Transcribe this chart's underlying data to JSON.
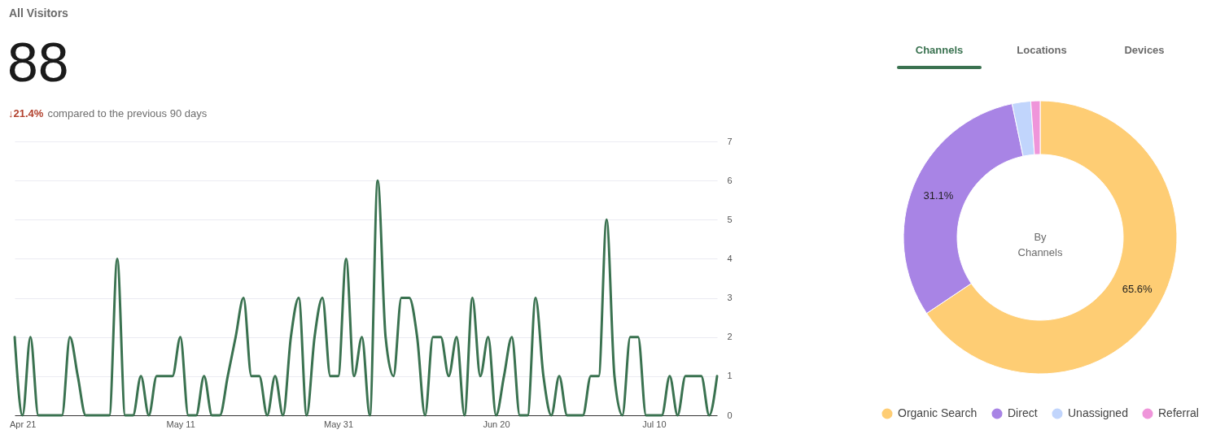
{
  "chart_data": [
    {
      "type": "line",
      "title": "All Visitors",
      "annotations": [
        "88",
        "↓21.4%",
        "compared to the previous 90 days"
      ],
      "x": [
        "--04-20",
        "--04-21",
        "--04-22",
        "--04-23",
        "--04-24",
        "--04-25",
        "--04-26",
        "--04-27",
        "--04-28",
        "--04-29",
        "--04-30",
        "--05-01",
        "--05-02",
        "--05-03",
        "--05-04",
        "--05-05",
        "--05-06",
        "--05-07",
        "--05-08",
        "--05-09",
        "--05-10",
        "--05-11",
        "--05-12",
        "--05-13",
        "--05-14",
        "--05-15",
        "--05-16",
        "--05-17",
        "--05-18",
        "--05-19",
        "--05-20",
        "--05-21",
        "--05-22",
        "--05-23",
        "--05-24",
        "--05-25",
        "--05-26",
        "--05-27",
        "--05-28",
        "--05-29",
        "--05-30",
        "--05-31",
        "--06-01",
        "--06-02",
        "--06-03",
        "--06-04",
        "--06-05",
        "--06-06",
        "--06-07",
        "--06-08",
        "--06-09",
        "--06-10",
        "--06-11",
        "--06-12",
        "--06-13",
        "--06-14",
        "--06-15",
        "--06-16",
        "--06-17",
        "--06-18",
        "--06-19",
        "--06-20",
        "--06-21",
        "--06-22",
        "--06-23",
        "--06-24",
        "--06-25",
        "--06-26",
        "--06-27",
        "--06-28",
        "--06-29",
        "--06-30",
        "--07-01",
        "--07-02",
        "--07-03",
        "--07-04",
        "--07-05",
        "--07-06",
        "--07-07",
        "--07-08",
        "--07-09",
        "--07-10",
        "--07-11",
        "--07-12",
        "--07-13",
        "--07-14",
        "--07-15",
        "--07-16",
        "--07-17",
        "--07-18"
      ],
      "series": [
        {
          "color": "#3a7250",
          "values": [
            2,
            0,
            2,
            0,
            0,
            0,
            0,
            2,
            1,
            0,
            0,
            0,
            0,
            4,
            0,
            0,
            1,
            0,
            1,
            1,
            1,
            2,
            0,
            0,
            1,
            0,
            0,
            1,
            2,
            3,
            1,
            1,
            0,
            1,
            0,
            2,
            3,
            0,
            2,
            3,
            1,
            1,
            4,
            1,
            2,
            0,
            6,
            2,
            1,
            3,
            3,
            2,
            0,
            2,
            2,
            1,
            2,
            0,
            3,
            1,
            2,
            0,
            1,
            2,
            0,
            0,
            3,
            1,
            0,
            1,
            0,
            0,
            0,
            1,
            1,
            5,
            1,
            0,
            2,
            2,
            0,
            0,
            0,
            1,
            0,
            1,
            1,
            1,
            0,
            1
          ]
        }
      ],
      "xlim": [
        "--04-20",
        "--07-18"
      ],
      "xticks": [
        {
          "value": "--04-21",
          "label": "Apr 21"
        },
        {
          "value": "--05-11",
          "label": "May 11"
        },
        {
          "value": "--05-31",
          "label": "May 31"
        },
        {
          "value": "--06-20",
          "label": "Jun 20"
        },
        {
          "value": "--07-10",
          "label": "Jul 10"
        }
      ],
      "ylim": [
        0,
        7
      ],
      "yticks": [
        0,
        1,
        2,
        3,
        4,
        5,
        6,
        7
      ],
      "grid": "y"
    },
    {
      "type": "donut",
      "annotations": [
        "Channels",
        "Locations",
        "Devices",
        "By Channels"
      ],
      "categories": [
        "Organic Search",
        "Direct",
        "Unassigned",
        "Referral"
      ],
      "values": [
        65.6,
        31.1,
        2.2,
        1.1
      ],
      "colors": [
        "#fecd74",
        "#a884e5",
        "#c1d5fc",
        "#ef95da"
      ],
      "value_labels": [
        "65.6%",
        "31.1%",
        null,
        null
      ],
      "legend": "bottom"
    }
  ]
}
